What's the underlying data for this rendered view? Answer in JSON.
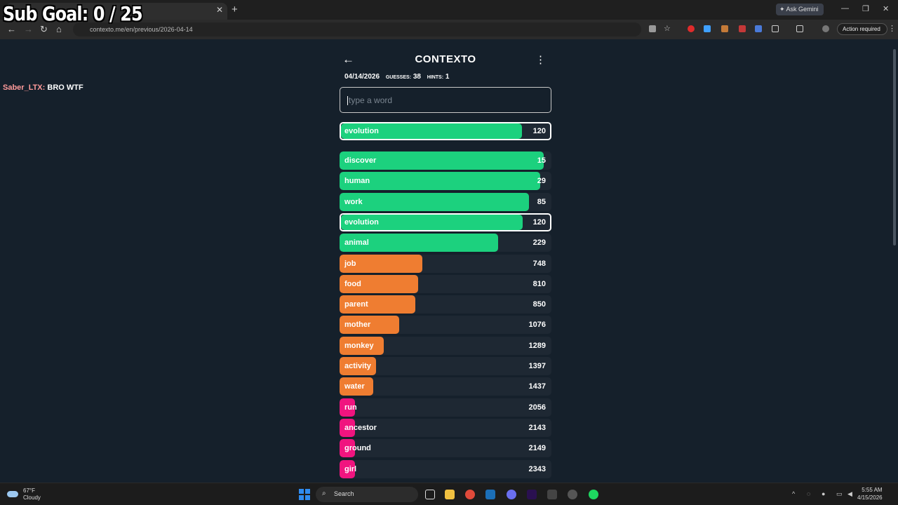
{
  "overlay": {
    "sub_goal": "Sub Goal:  0 / 25"
  },
  "browser": {
    "url": "contexto.me/en/previous/2026-04-14",
    "ask_gemini": "Ask Gemini",
    "action_required": "Action required"
  },
  "chat": {
    "user": "Saber_LTX:",
    "message": " BRO WTF"
  },
  "game": {
    "title": "CONTEXTO",
    "date": "04/14/2026",
    "guesses_label": "GUESSES:",
    "guesses": "38",
    "hints_label": "HINTS:",
    "hints": "1",
    "input_placeholder": "type a word",
    "latest": {
      "word": "evolution",
      "rank": "120"
    },
    "guesses_list": [
      {
        "word": "discover",
        "rank": "15"
      },
      {
        "word": "human",
        "rank": "29"
      },
      {
        "word": "work",
        "rank": "85"
      },
      {
        "word": "evolution",
        "rank": "120"
      },
      {
        "word": "animal",
        "rank": "229"
      },
      {
        "word": "job",
        "rank": "748"
      },
      {
        "word": "food",
        "rank": "810"
      },
      {
        "word": "parent",
        "rank": "850"
      },
      {
        "word": "mother",
        "rank": "1076"
      },
      {
        "word": "monkey",
        "rank": "1289"
      },
      {
        "word": "activity",
        "rank": "1397"
      },
      {
        "word": "water",
        "rank": "1437"
      },
      {
        "word": "run",
        "rank": "2056"
      },
      {
        "word": "ancestor",
        "rank": "2143"
      },
      {
        "word": "ground",
        "rank": "2149"
      },
      {
        "word": "girl",
        "rank": "2343"
      }
    ],
    "colors": {
      "green": "#1cd17e",
      "orange": "#ef7d31",
      "pink": "#f0147f"
    }
  },
  "taskbar": {
    "temp": "67°F",
    "condition": "Cloudy",
    "search": "Search",
    "time": "5:55 AM",
    "date": "4/15/2026"
  }
}
